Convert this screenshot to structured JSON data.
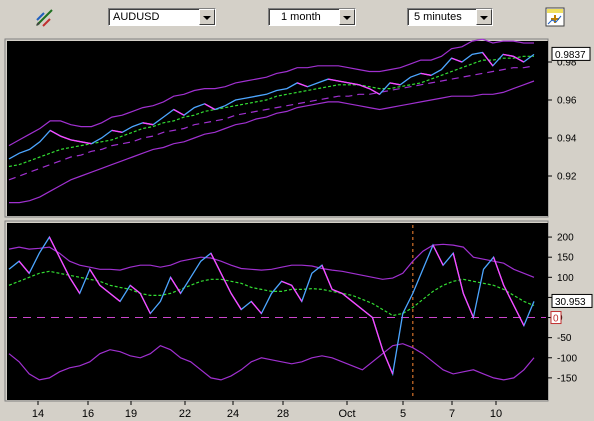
{
  "toolbar": {
    "symbol": "AUDUSD",
    "range": "1 month",
    "interval": "5 minutes",
    "draw_icon": "draw-line-icon",
    "settings_icon": "chart-settings-icon"
  },
  "colors": {
    "panel_bg": "#000000",
    "frame": "#d4d0c8",
    "price": "#4da6ff",
    "price_down": "#ff44ff",
    "band": "#a030d0",
    "ma": "#33dd33",
    "zero": "#cc44cc",
    "event_line": "#ff8833"
  },
  "chart_data": [
    {
      "type": "line",
      "name": "price-panel",
      "ylim": [
        0.9,
        0.99
      ],
      "yticks": [
        0.92,
        0.94,
        0.96,
        0.98
      ],
      "ytick_labels": [
        "0.92",
        "0.94",
        "0.96",
        "0.98"
      ],
      "last_value": "0.9837",
      "series": [
        {
          "role": "price",
          "values": [
            0.929,
            0.932,
            0.934,
            0.938,
            0.944,
            0.941,
            0.939,
            0.938,
            0.937,
            0.94,
            0.944,
            0.943,
            0.946,
            0.948,
            0.947,
            0.951,
            0.955,
            0.952,
            0.956,
            0.958,
            0.955,
            0.957,
            0.96,
            0.961,
            0.962,
            0.963,
            0.965,
            0.966,
            0.969,
            0.967,
            0.969,
            0.971,
            0.97,
            0.969,
            0.968,
            0.966,
            0.963,
            0.969,
            0.968,
            0.972,
            0.974,
            0.973,
            0.976,
            0.982,
            0.98,
            0.984,
            0.985,
            0.978,
            0.984,
            0.983,
            0.98,
            0.984
          ]
        },
        {
          "role": "upper-band",
          "values": [
            0.936,
            0.939,
            0.942,
            0.945,
            0.949,
            0.949,
            0.947,
            0.946,
            0.946,
            0.948,
            0.951,
            0.952,
            0.954,
            0.956,
            0.957,
            0.959,
            0.962,
            0.963,
            0.965,
            0.966,
            0.966,
            0.967,
            0.969,
            0.97,
            0.971,
            0.972,
            0.974,
            0.975,
            0.977,
            0.977,
            0.978,
            0.978,
            0.978,
            0.977,
            0.976,
            0.975,
            0.975,
            0.976,
            0.977,
            0.979,
            0.981,
            0.981,
            0.983,
            0.987,
            0.988,
            0.991,
            0.992,
            0.99,
            0.991,
            0.991,
            0.99,
            0.99
          ]
        },
        {
          "role": "lower-band",
          "values": [
            0.906,
            0.906,
            0.907,
            0.909,
            0.912,
            0.915,
            0.918,
            0.92,
            0.922,
            0.924,
            0.926,
            0.928,
            0.93,
            0.932,
            0.934,
            0.935,
            0.937,
            0.938,
            0.94,
            0.942,
            0.943,
            0.945,
            0.947,
            0.948,
            0.95,
            0.951,
            0.953,
            0.954,
            0.956,
            0.957,
            0.958,
            0.959,
            0.959,
            0.958,
            0.957,
            0.956,
            0.955,
            0.956,
            0.957,
            0.958,
            0.959,
            0.96,
            0.961,
            0.962,
            0.962,
            0.962,
            0.963,
            0.963,
            0.964,
            0.966,
            0.968,
            0.97
          ]
        },
        {
          "role": "moving-average",
          "values": [
            0.925,
            0.926,
            0.928,
            0.93,
            0.932,
            0.934,
            0.935,
            0.936,
            0.937,
            0.938,
            0.939,
            0.941,
            0.943,
            0.945,
            0.946,
            0.948,
            0.949,
            0.951,
            0.952,
            0.954,
            0.955,
            0.956,
            0.957,
            0.958,
            0.959,
            0.96,
            0.962,
            0.963,
            0.964,
            0.965,
            0.966,
            0.967,
            0.968,
            0.968,
            0.968,
            0.967,
            0.966,
            0.966,
            0.967,
            0.968,
            0.969,
            0.971,
            0.973,
            0.975,
            0.977,
            0.979,
            0.981,
            0.981,
            0.982,
            0.982,
            0.983,
            0.983
          ]
        },
        {
          "role": "trend",
          "values": [
            0.918,
            0.92,
            0.922,
            0.924,
            0.926,
            0.928,
            0.93,
            0.931,
            0.933,
            0.934,
            0.936,
            0.937,
            0.938,
            0.94,
            0.941,
            0.943,
            0.944,
            0.945,
            0.947,
            0.948,
            0.949,
            0.95,
            0.952,
            0.953,
            0.954,
            0.955,
            0.956,
            0.957,
            0.958,
            0.959,
            0.96,
            0.961,
            0.962,
            0.962,
            0.963,
            0.963,
            0.964,
            0.965,
            0.966,
            0.967,
            0.968,
            0.969,
            0.97,
            0.971,
            0.972,
            0.973,
            0.974,
            0.975,
            0.976,
            0.977,
            0.977,
            0.978
          ]
        }
      ]
    },
    {
      "type": "line",
      "name": "oscillator-panel",
      "ylim": [
        -200,
        230
      ],
      "yticks": [
        -150,
        -100,
        -50,
        0,
        50,
        100,
        150,
        200
      ],
      "ytick_labels": [
        "-150",
        "-100",
        "-50",
        "0",
        "50",
        "100",
        "150",
        "200"
      ],
      "last_value": "30.953",
      "zero_label": "0",
      "series": [
        {
          "role": "oscillator",
          "values": [
            120,
            140,
            110,
            160,
            200,
            150,
            100,
            60,
            120,
            80,
            60,
            40,
            80,
            60,
            10,
            40,
            100,
            60,
            100,
            140,
            160,
            110,
            60,
            20,
            40,
            10,
            60,
            90,
            80,
            40,
            110,
            130,
            70,
            60,
            40,
            20,
            0,
            -80,
            -140,
            10,
            60,
            120,
            180,
            130,
            160,
            60,
            0,
            120,
            150,
            80,
            30,
            -20,
            40
          ]
        },
        {
          "role": "upper-band",
          "values": [
            170,
            175,
            170,
            172,
            175,
            160,
            140,
            130,
            125,
            120,
            120,
            118,
            125,
            130,
            130,
            125,
            130,
            140,
            145,
            150,
            148,
            140,
            130,
            122,
            120,
            118,
            120,
            125,
            130,
            130,
            128,
            122,
            118,
            115,
            110,
            105,
            100,
            95,
            98,
            110,
            140,
            165,
            180,
            182,
            180,
            175,
            150,
            145,
            140,
            135,
            120,
            110,
            100
          ]
        },
        {
          "role": "lower-band",
          "values": [
            -90,
            -110,
            -140,
            -155,
            -150,
            -135,
            -125,
            -120,
            -110,
            -90,
            -80,
            -85,
            -95,
            -100,
            -90,
            -70,
            -80,
            -100,
            -110,
            -130,
            -150,
            -155,
            -145,
            -130,
            -110,
            -100,
            -105,
            -110,
            -115,
            -110,
            -100,
            -95,
            -100,
            -110,
            -120,
            -130,
            -110,
            -90,
            -70,
            -65,
            -75,
            -90,
            -110,
            -130,
            -140,
            -135,
            -130,
            -140,
            -150,
            -155,
            -150,
            -130,
            -100
          ]
        },
        {
          "role": "moving-average",
          "values": [
            80,
            90,
            100,
            110,
            115,
            110,
            105,
            100,
            95,
            90,
            80,
            75,
            70,
            60,
            55,
            55,
            60,
            70,
            80,
            90,
            95,
            95,
            90,
            85,
            75,
            70,
            65,
            65,
            70,
            70,
            72,
            70,
            65,
            60,
            55,
            45,
            35,
            20,
            5,
            10,
            25,
            45,
            65,
            80,
            90,
            95,
            90,
            85,
            80,
            70,
            55,
            40,
            30
          ]
        }
      ]
    }
  ],
  "x_axis": {
    "labels": [
      "14",
      "16",
      "19",
      "22",
      "24",
      "28",
      "Oct",
      "5",
      "7",
      "10"
    ]
  }
}
